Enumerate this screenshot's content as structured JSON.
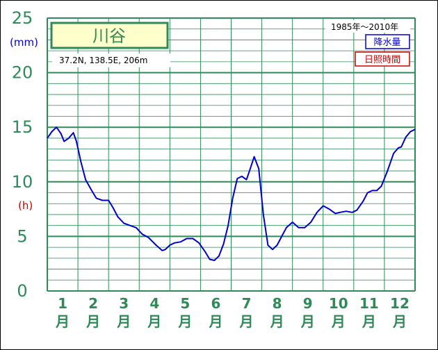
{
  "chart_data": {
    "type": "line",
    "title": "川谷",
    "location": "37.2N, 138.5E, 206m",
    "period": "1985年〜2010年",
    "unit_precip": "(mm)",
    "unit_sun": "(h)",
    "legend": [
      {
        "label": "降水量",
        "color": "#0000cc"
      },
      {
        "label": "日照時間",
        "color": "#cc0000"
      }
    ],
    "y_ticks": [
      0,
      5,
      10,
      15,
      20,
      25
    ],
    "ylim": [
      0,
      25
    ],
    "months": [
      {
        "num": "1",
        "kanji": "月"
      },
      {
        "num": "2",
        "kanji": "月"
      },
      {
        "num": "3",
        "kanji": "月"
      },
      {
        "num": "4",
        "kanji": "月"
      },
      {
        "num": "5",
        "kanji": "月"
      },
      {
        "num": "6",
        "kanji": "月"
      },
      {
        "num": "7",
        "kanji": "月"
      },
      {
        "num": "8",
        "kanji": "月"
      },
      {
        "num": "9",
        "kanji": "月"
      },
      {
        "num": "10",
        "kanji": "月"
      },
      {
        "num": "11",
        "kanji": "月"
      },
      {
        "num": "12",
        "kanji": "月"
      }
    ],
    "xlim": [
      0,
      12
    ],
    "grid": true,
    "series": [
      {
        "name": "降水量",
        "color": "#0000cc",
        "x": [
          0.0,
          0.15,
          0.3,
          0.45,
          0.55,
          0.7,
          0.85,
          0.95,
          1.1,
          1.25,
          1.45,
          1.6,
          1.8,
          2.0,
          2.15,
          2.3,
          2.5,
          2.7,
          2.9,
          3.1,
          3.3,
          3.55,
          3.75,
          3.85,
          4.0,
          4.15,
          4.35,
          4.55,
          4.75,
          4.95,
          5.15,
          5.3,
          5.45,
          5.6,
          5.75,
          5.9,
          6.05,
          6.2,
          6.35,
          6.5,
          6.6,
          6.75,
          6.9,
          7.05,
          7.2,
          7.35,
          7.5,
          7.65,
          7.8,
          8.0,
          8.2,
          8.4,
          8.6,
          8.8,
          9.0,
          9.2,
          9.4,
          9.55,
          9.75,
          9.95,
          10.1,
          10.3,
          10.45,
          10.6,
          10.75,
          10.9,
          11.1,
          11.3,
          11.45,
          11.55,
          11.7,
          11.85,
          12.0
        ],
        "values": [
          14.0,
          14.6,
          15.0,
          14.4,
          13.7,
          14.0,
          14.5,
          13.7,
          11.8,
          10.2,
          9.2,
          8.5,
          8.3,
          8.3,
          7.6,
          6.8,
          6.2,
          6.0,
          5.8,
          5.2,
          4.9,
          4.2,
          3.7,
          3.8,
          4.2,
          4.4,
          4.5,
          4.8,
          4.8,
          4.4,
          3.6,
          2.9,
          2.8,
          3.2,
          4.3,
          6.0,
          8.5,
          10.3,
          10.5,
          10.2,
          11.0,
          12.3,
          11.2,
          7.0,
          4.2,
          3.8,
          4.2,
          5.0,
          5.8,
          6.3,
          5.8,
          5.8,
          6.3,
          7.2,
          7.8,
          7.5,
          7.1,
          7.2,
          7.3,
          7.2,
          7.4,
          8.2,
          9.0,
          9.2,
          9.2,
          9.6,
          11.0,
          12.6,
          13.1,
          13.2,
          14.1,
          14.6,
          14.8
        ]
      }
    ]
  }
}
